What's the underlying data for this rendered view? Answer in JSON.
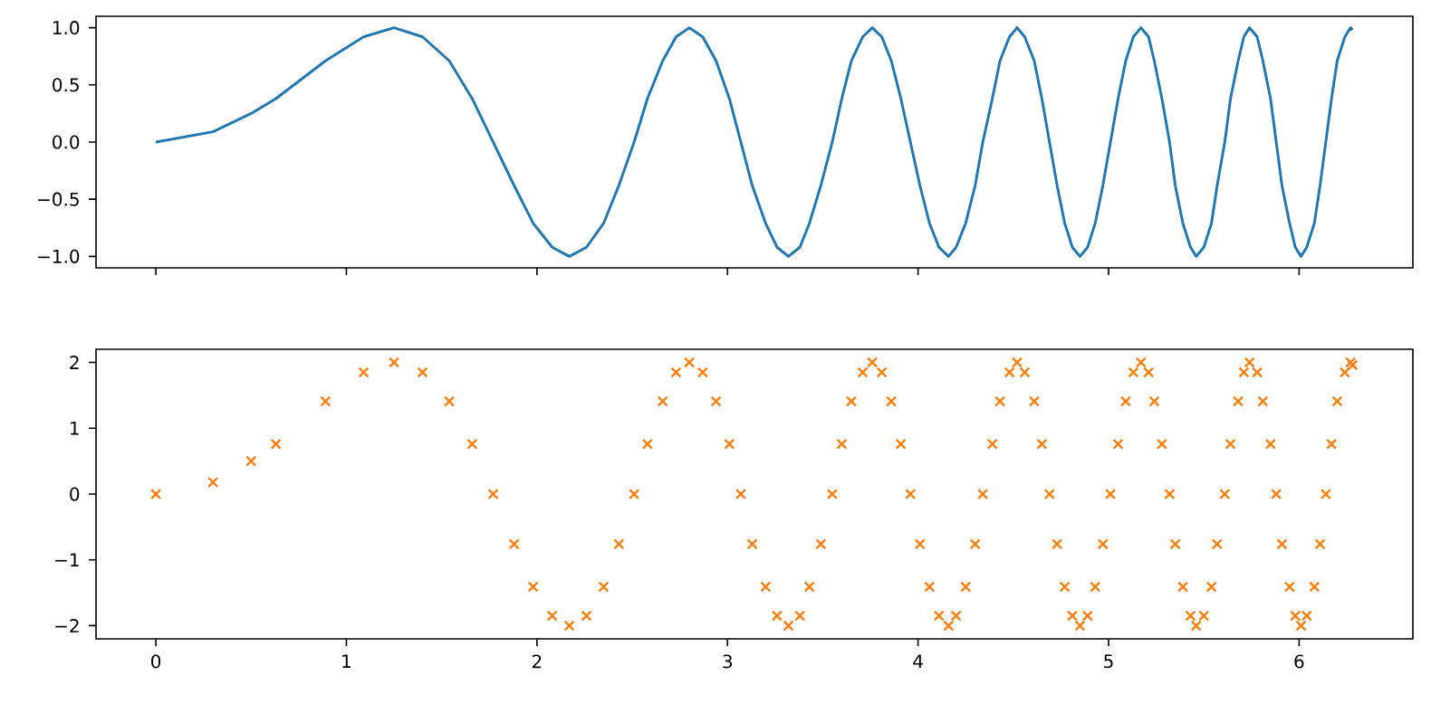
{
  "chart_data": [
    {
      "type": "line",
      "color": "#1f77b4",
      "line_style": "solid",
      "tick_labels": "y",
      "xlim": [
        -0.314,
        6.597
      ],
      "ylim": [
        -1.1,
        1.1
      ],
      "xticks": [
        {
          "value": 0,
          "label": null
        },
        {
          "value": 1,
          "label": null
        },
        {
          "value": 2,
          "label": null
        },
        {
          "value": 3,
          "label": null
        },
        {
          "value": 4,
          "label": null
        },
        {
          "value": 5,
          "label": null
        },
        {
          "value": 6,
          "label": null
        }
      ],
      "yticks": [
        {
          "value": -1,
          "label": "−1.0"
        },
        {
          "value": -0.5,
          "label": "−0.5"
        },
        {
          "value": 0,
          "label": "0.0"
        },
        {
          "value": 0.5,
          "label": "0.5"
        },
        {
          "value": 1,
          "label": "1.0"
        }
      ],
      "x": [
        0,
        0.3,
        0.5,
        0.63,
        0.89,
        1.09,
        1.25,
        1.4,
        1.54,
        1.66,
        1.77,
        1.88,
        1.98,
        2.08,
        2.17,
        2.26,
        2.35,
        2.43,
        2.51,
        2.58,
        2.66,
        2.73,
        2.8,
        2.87,
        2.94,
        3.01,
        3.07,
        3.13,
        3.2,
        3.26,
        3.32,
        3.38,
        3.43,
        3.49,
        3.55,
        3.6,
        3.65,
        3.71,
        3.76,
        3.81,
        3.86,
        3.91,
        3.96,
        4.01,
        4.06,
        4.11,
        4.16,
        4.2,
        4.25,
        4.3,
        4.34,
        4.39,
        4.43,
        4.48,
        4.52,
        4.56,
        4.61,
        4.65,
        4.69,
        4.73,
        4.77,
        4.81,
        4.85,
        4.89,
        4.93,
        4.97,
        5.01,
        5.05,
        5.09,
        5.13,
        5.17,
        5.21,
        5.24,
        5.28,
        5.32,
        5.35,
        5.39,
        5.43,
        5.46,
        5.5,
        5.54,
        5.57,
        5.61,
        5.64,
        5.68,
        5.71,
        5.74,
        5.78,
        5.81,
        5.85,
        5.88,
        5.91,
        5.95,
        5.98,
        6.01,
        6.04,
        6.08,
        6.11,
        6.14,
        6.17,
        6.2,
        6.24,
        6.27,
        6.28
      ],
      "values": [
        0,
        0.09,
        0.25,
        0.38,
        0.71,
        0.92,
        1,
        0.92,
        0.71,
        0.38,
        0,
        -0.38,
        -0.71,
        -0.92,
        -1,
        -0.92,
        -0.71,
        -0.38,
        0,
        0.38,
        0.71,
        0.92,
        1,
        0.92,
        0.71,
        0.38,
        0,
        -0.38,
        -0.71,
        -0.92,
        -1,
        -0.92,
        -0.71,
        -0.38,
        0,
        0.38,
        0.71,
        0.92,
        1,
        0.92,
        0.71,
        0.38,
        0,
        -0.38,
        -0.71,
        -0.92,
        -1,
        -0.92,
        -0.71,
        -0.38,
        0,
        0.38,
        0.71,
        0.92,
        1,
        0.92,
        0.71,
        0.38,
        0,
        -0.38,
        -0.71,
        -0.92,
        -1,
        -0.92,
        -0.71,
        -0.38,
        0,
        0.38,
        0.71,
        0.92,
        1,
        0.92,
        0.71,
        0.38,
        0,
        -0.38,
        -0.71,
        -0.92,
        -1,
        -0.92,
        -0.71,
        -0.38,
        0,
        0.38,
        0.71,
        0.92,
        1,
        0.92,
        0.71,
        0.38,
        0,
        -0.38,
        -0.71,
        -0.92,
        -1,
        -0.92,
        -0.71,
        -0.38,
        0,
        0.38,
        0.71,
        0.92,
        1,
        0.98
      ]
    },
    {
      "type": "scatter",
      "color": "#ff7f0e",
      "marker": "cross",
      "xlim": [
        -0.314,
        6.597
      ],
      "ylim": [
        -2.2,
        2.2
      ],
      "xticks": [
        0,
        1,
        2,
        3,
        4,
        5,
        6
      ],
      "yticks": [
        {
          "value": -2,
          "label": "−2"
        },
        {
          "value": -1,
          "label": "−1"
        },
        0,
        1,
        2
      ],
      "x": [
        0,
        0.3,
        0.5,
        0.63,
        0.89,
        1.09,
        1.25,
        1.4,
        1.54,
        1.66,
        1.77,
        1.88,
        1.98,
        2.08,
        2.17,
        2.26,
        2.35,
        2.43,
        2.51,
        2.58,
        2.66,
        2.73,
        2.8,
        2.87,
        2.94,
        3.01,
        3.07,
        3.13,
        3.2,
        3.26,
        3.32,
        3.38,
        3.43,
        3.49,
        3.55,
        3.6,
        3.65,
        3.71,
        3.76,
        3.81,
        3.86,
        3.91,
        3.96,
        4.01,
        4.06,
        4.11,
        4.16,
        4.2,
        4.25,
        4.3,
        4.34,
        4.39,
        4.43,
        4.48,
        4.52,
        4.56,
        4.61,
        4.65,
        4.69,
        4.73,
        4.77,
        4.81,
        4.85,
        4.89,
        4.93,
        4.97,
        5.01,
        5.05,
        5.09,
        5.13,
        5.17,
        5.21,
        5.24,
        5.28,
        5.32,
        5.35,
        5.39,
        5.43,
        5.46,
        5.5,
        5.54,
        5.57,
        5.61,
        5.64,
        5.68,
        5.71,
        5.74,
        5.78,
        5.81,
        5.85,
        5.88,
        5.91,
        5.95,
        5.98,
        6.01,
        6.04,
        6.08,
        6.11,
        6.14,
        6.17,
        6.2,
        6.24,
        6.27,
        6.28
      ],
      "values": [
        0,
        0.18,
        0.5,
        0.76,
        1.41,
        1.85,
        2,
        1.85,
        1.41,
        0.76,
        0,
        -0.76,
        -1.41,
        -1.85,
        -2,
        -1.85,
        -1.41,
        -0.76,
        0,
        0.76,
        1.41,
        1.85,
        2,
        1.85,
        1.41,
        0.76,
        0,
        -0.76,
        -1.41,
        -1.85,
        -2,
        -1.85,
        -1.41,
        -0.76,
        0,
        0.76,
        1.41,
        1.85,
        2,
        1.85,
        1.41,
        0.76,
        0,
        -0.76,
        -1.41,
        -1.85,
        -2,
        -1.85,
        -1.41,
        -0.76,
        0,
        0.76,
        1.41,
        1.85,
        2,
        1.85,
        1.41,
        0.76,
        0,
        -0.76,
        -1.41,
        -1.85,
        -2,
        -1.85,
        -1.41,
        -0.76,
        0,
        0.76,
        1.41,
        1.85,
        2,
        1.85,
        1.41,
        0.76,
        0,
        -0.76,
        -1.41,
        -1.85,
        -2,
        -1.85,
        -1.41,
        -0.76,
        0,
        0.76,
        1.41,
        1.85,
        2,
        1.85,
        1.41,
        0.76,
        0,
        -0.76,
        -1.41,
        -1.85,
        -2,
        -1.85,
        -1.41,
        -0.76,
        0,
        0.76,
        1.41,
        1.85,
        2,
        1.96
      ]
    }
  ]
}
